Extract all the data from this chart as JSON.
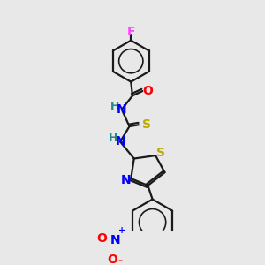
{
  "background_color": "#e8e8e8",
  "bond_color": "#1a1a1a",
  "atom_colors": {
    "F": "#ff44ff",
    "O": "#ff0000",
    "N": "#0000ff",
    "S": "#bbaa00",
    "H": "#228888",
    "C": "#1a1a1a"
  },
  "figsize": [
    3.0,
    3.0
  ],
  "dpi": 100
}
